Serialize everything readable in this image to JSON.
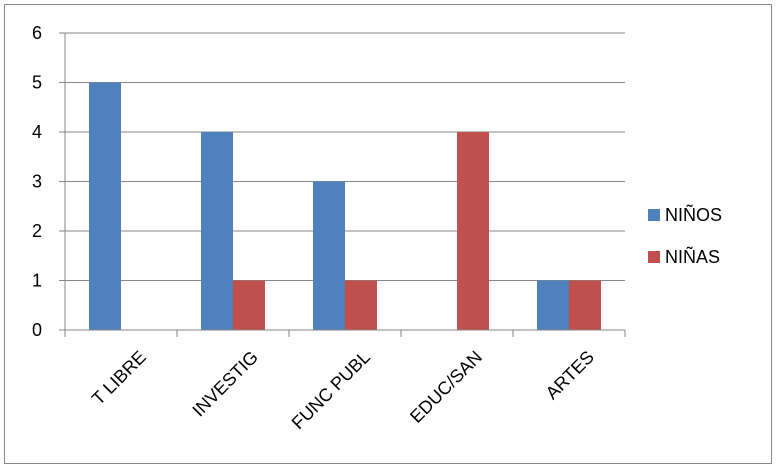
{
  "chart_data": {
    "type": "bar",
    "categories": [
      "T LIBRE",
      "INVESTIG",
      "FUNC PUBL",
      "EDUC/SAN",
      "ARTES"
    ],
    "series": [
      {
        "name": "NIÑOS",
        "color": "#4F81BD",
        "values": [
          5,
          4,
          3,
          0,
          1
        ]
      },
      {
        "name": "NIÑAS",
        "color": "#C0504D",
        "values": [
          0,
          1,
          1,
          4,
          1
        ]
      }
    ],
    "yticks": [
      "0",
      "1",
      "2",
      "3",
      "4",
      "5",
      "6"
    ],
    "ylim": [
      0,
      6
    ],
    "grid": true,
    "legend": "right",
    "title": "",
    "xlabel": "",
    "ylabel": ""
  }
}
